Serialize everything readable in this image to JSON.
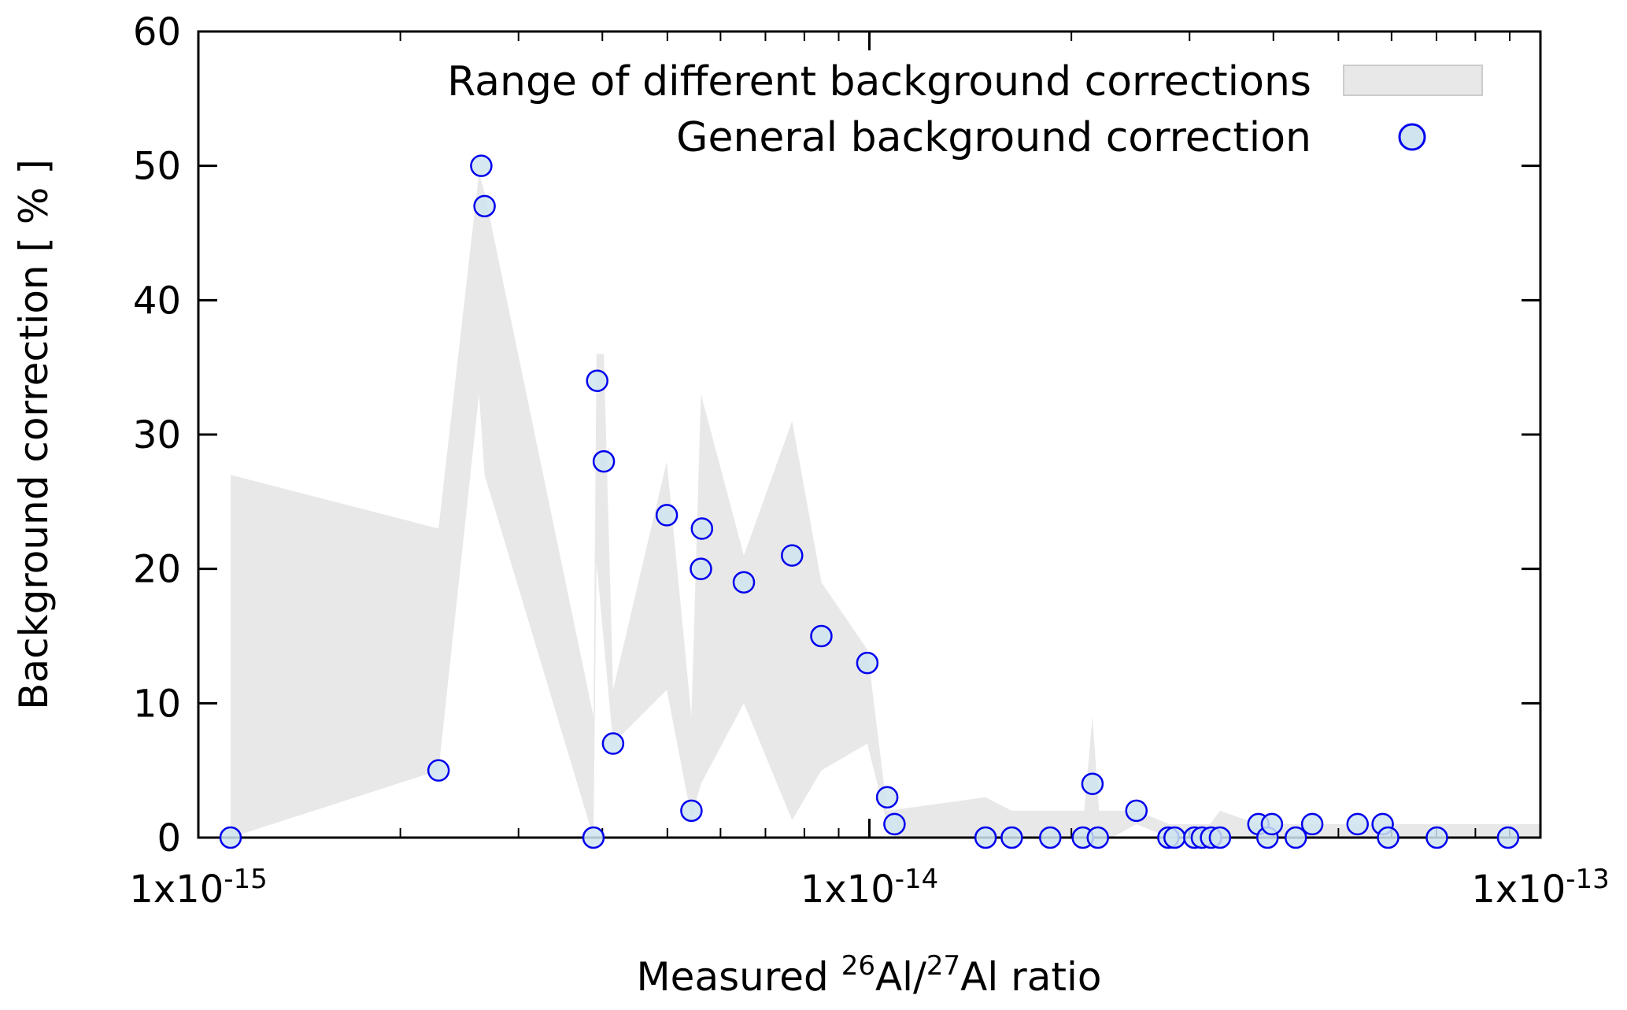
{
  "chart_data": {
    "type": "scatter",
    "title": "",
    "xlabel": {
      "prefix": "Measured ",
      "sup1": "26",
      "mid": "Al/",
      "sup2": "27",
      "suffix": "Al ratio"
    },
    "ylabel": "Background correction [ % ]",
    "xscale": "log",
    "xlim": [
      1e-15,
      1e-13
    ],
    "ylim": [
      0,
      60
    ],
    "xticks": [
      {
        "base": "1x10",
        "exp": "-15",
        "value": 1e-15
      },
      {
        "base": "1x10",
        "exp": "-14",
        "value": 1e-14
      },
      {
        "base": "1x10",
        "exp": "-13",
        "value": 1e-13
      }
    ],
    "yticks": [
      "0",
      "10",
      "20",
      "30",
      "40",
      "50",
      "60"
    ],
    "grid": false,
    "legend_position": "top-right",
    "legend": [
      "Range of different background corrections",
      "General background correction"
    ],
    "colors": {
      "band": "#e8e8e8",
      "marker_stroke": "#0000ee",
      "marker_fill": "#cfe4ef"
    },
    "band": {
      "name": "Range of different background corrections",
      "upper": [
        [
          1.117e-15,
          27
        ],
        [
          2.28e-15,
          23
        ],
        [
          2.62e-15,
          49.5
        ],
        [
          2.67e-15,
          48
        ],
        [
          3.88e-15,
          9
        ],
        [
          3.92e-15,
          36
        ],
        [
          4.02e-15,
          36
        ],
        [
          4.15e-15,
          11
        ],
        [
          4.99e-15,
          28
        ],
        [
          5.43e-15,
          9
        ],
        [
          5.61e-15,
          33
        ],
        [
          6.5e-15,
          21
        ],
        [
          7.67e-15,
          31
        ],
        [
          8.48e-15,
          19
        ],
        [
          9.93e-15,
          14
        ],
        [
          1.063e-14,
          2
        ],
        [
          1.49e-14,
          3
        ],
        [
          1.63e-14,
          2
        ],
        [
          2.09e-14,
          2
        ],
        [
          2.15e-14,
          9
        ],
        [
          2.2e-14,
          2
        ],
        [
          2.5e-14,
          2
        ],
        [
          2.8e-14,
          1
        ],
        [
          3.22e-14,
          1
        ],
        [
          3.33e-14,
          2
        ],
        [
          3.8e-14,
          1
        ],
        [
          1e-13,
          1
        ]
      ],
      "lower": [
        [
          1.117e-15,
          0
        ],
        [
          2.28e-15,
          5
        ],
        [
          2.62e-15,
          33
        ],
        [
          2.67e-15,
          27
        ],
        [
          3.88e-15,
          0
        ],
        [
          3.92e-15,
          20.5
        ],
        [
          4.15e-15,
          7
        ],
        [
          4.99e-15,
          11
        ],
        [
          5.43e-15,
          1.5
        ],
        [
          5.61e-15,
          4
        ],
        [
          6.5e-15,
          10
        ],
        [
          7.67e-15,
          1.3
        ],
        [
          8.48e-15,
          5
        ],
        [
          9.93e-15,
          7
        ],
        [
          1.063e-14,
          1
        ],
        [
          1.09e-14,
          0
        ],
        [
          2.3e-14,
          0
        ],
        [
          2.5e-14,
          1
        ],
        [
          2.8e-14,
          0
        ],
        [
          1e-13,
          0
        ]
      ]
    },
    "series": [
      {
        "name": "General background correction",
        "points": [
          [
            1.117e-15,
            0
          ],
          [
            2.28e-15,
            5
          ],
          [
            2.64e-15,
            50
          ],
          [
            2.67e-15,
            47
          ],
          [
            3.88e-15,
            0
          ],
          [
            3.93e-15,
            34
          ],
          [
            4.02e-15,
            28
          ],
          [
            4.15e-15,
            7
          ],
          [
            4.99e-15,
            24
          ],
          [
            5.43e-15,
            2
          ],
          [
            5.63e-15,
            23
          ],
          [
            5.61e-15,
            20
          ],
          [
            6.5e-15,
            19
          ],
          [
            7.67e-15,
            21
          ],
          [
            8.48e-15,
            15
          ],
          [
            9.93e-15,
            13
          ],
          [
            1.063e-14,
            3
          ],
          [
            1.09e-14,
            1
          ],
          [
            1.49e-14,
            0
          ],
          [
            1.63e-14,
            0
          ],
          [
            1.86e-14,
            0
          ],
          [
            2.08e-14,
            0
          ],
          [
            2.15e-14,
            4
          ],
          [
            2.19e-14,
            0
          ],
          [
            2.5e-14,
            2
          ],
          [
            2.79e-14,
            0
          ],
          [
            2.85e-14,
            0
          ],
          [
            3.05e-14,
            0
          ],
          [
            3.13e-14,
            0
          ],
          [
            3.23e-14,
            0
          ],
          [
            3.33e-14,
            0
          ],
          [
            3.8e-14,
            1
          ],
          [
            3.92e-14,
            0
          ],
          [
            3.98e-14,
            1
          ],
          [
            4.32e-14,
            0
          ],
          [
            4.57e-14,
            1
          ],
          [
            5.34e-14,
            1
          ],
          [
            5.82e-14,
            1
          ],
          [
            5.93e-14,
            0
          ],
          [
            7.01e-14,
            0
          ],
          [
            8.95e-14,
            0
          ]
        ]
      }
    ]
  }
}
